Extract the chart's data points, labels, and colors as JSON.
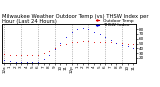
{
  "title": "Milwaukee Weather Outdoor Temp (vs) THSW Index per Hour (Last 24 Hours)",
  "background_color": "#ffffff",
  "plot_bg_color": "#ffffff",
  "grid_color": "#888888",
  "x_labels": [
    "12a",
    "1",
    "2",
    "3",
    "4",
    "5",
    "6",
    "7",
    "8",
    "9",
    "10",
    "11",
    "12p",
    "1",
    "2",
    "3",
    "4",
    "5",
    "6",
    "7",
    "8",
    "9",
    "10",
    "11"
  ],
  "hours": [
    0,
    1,
    2,
    3,
    4,
    5,
    6,
    7,
    8,
    9,
    10,
    11,
    12,
    13,
    14,
    15,
    16,
    17,
    18,
    19,
    20,
    21,
    22,
    23
  ],
  "temp_outdoor": [
    28,
    27,
    27,
    27,
    27,
    27,
    27,
    30,
    35,
    40,
    46,
    50,
    53,
    54,
    55,
    55,
    54,
    54,
    53,
    53,
    52,
    51,
    50,
    49
  ],
  "thsw_index": [
    15,
    13,
    12,
    11,
    11,
    11,
    12,
    17,
    27,
    38,
    52,
    63,
    73,
    80,
    83,
    81,
    75,
    70,
    63,
    58,
    52,
    47,
    44,
    41
  ],
  "temp_color": "#dd0000",
  "thsw_color": "#0000dd",
  "ylim": [
    10,
    90
  ],
  "yticks": [
    20,
    30,
    40,
    50,
    60,
    70,
    80
  ],
  "ytick_labels": [
    "20",
    "30",
    "40",
    "50",
    "60",
    "70",
    "80"
  ],
  "title_fontsize": 3.8,
  "tick_fontsize": 3.0,
  "legend_fontsize": 3.2,
  "grid_every": 3
}
